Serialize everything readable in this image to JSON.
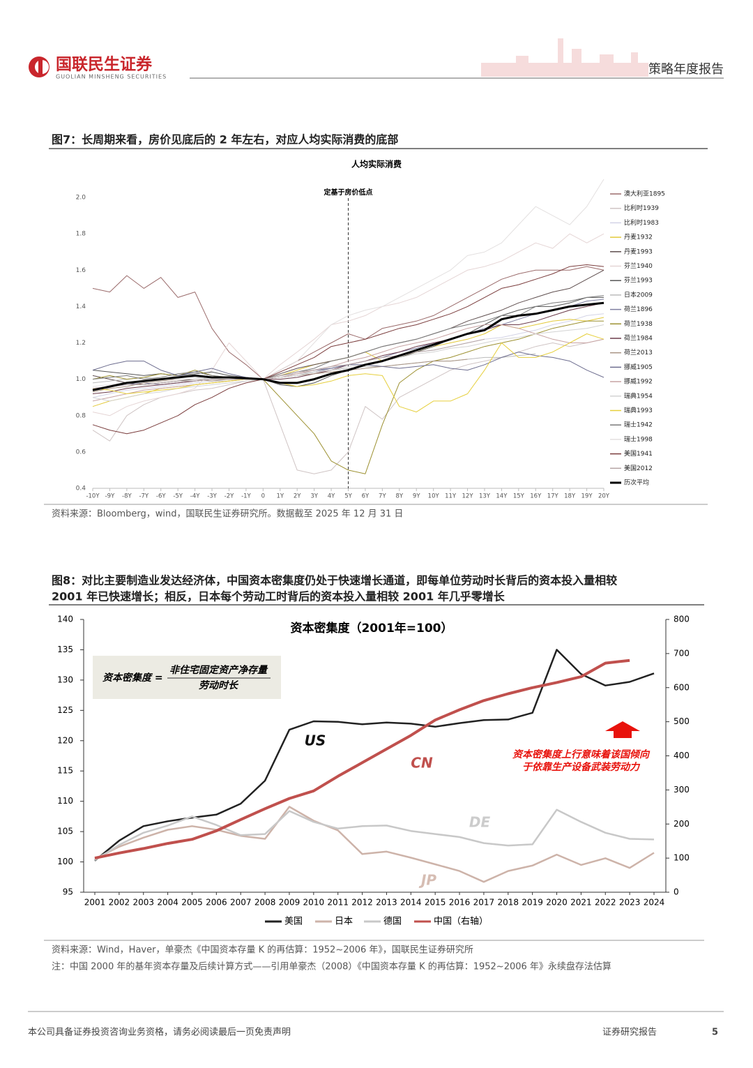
{
  "header": {
    "logo_cn": "国联民生证券",
    "logo_en": "GUOLIAN MINSHENG SECURITIES",
    "report_type": "策略年度报告"
  },
  "figures": [
    {
      "caption": "图7：长周期来看，房价见底后的 2 年左右，对应人均实际消费的底部",
      "source": "资料来源：Bloomberg，wind，国联民生证券研究所。数据截至 2025 年 12 月 31 日"
    },
    {
      "caption_lines": [
        "图8：对比主要制造业发达经济体，中国资本密集度仍处于快速增长通道，即每单位劳动时长背后的资本投入量相较",
        "2001 年已快速增长；相反，日本每个劳动工时背后的资本投入量相较 2001 年几乎零增长"
      ],
      "source": "资料来源：Wind，Haver，单豪杰《中国资本存量 K 的再估算：1952~2006 年》，国联民生证券研究所",
      "note": "注：中国 2000 年的基年资本存量及后续计算方式——引用单豪杰（2008）《中国资本存量 K 的再估算：1952~2006 年》永续盘存法估算"
    }
  ],
  "chart_data": [
    {
      "type": "line",
      "title": "人均实际消费",
      "annotations": [
        "定基于房价低点"
      ],
      "legend": "right",
      "categories": [
        "-10Y",
        "-9Y",
        "-8Y",
        "-7Y",
        "-6Y",
        "-5Y",
        "-4Y",
        "-3Y",
        "-2Y",
        "-1Y",
        "0",
        "1Y",
        "2Y",
        "3Y",
        "4Y",
        "5Y",
        "6Y",
        "7Y",
        "8Y",
        "9Y",
        "10Y",
        "11Y",
        "12Y",
        "13Y",
        "14Y",
        "15Y",
        "16Y",
        "17Y",
        "18Y",
        "19Y",
        "20Y"
      ],
      "ylim": [
        0.4,
        2.1
      ],
      "yticks": [
        0.4,
        0.6,
        0.8,
        {
          "value": 1,
          "label": "1.0"
        },
        1.2,
        1.4,
        1.6,
        1.8,
        {
          "value": 2,
          "label": "2.0"
        }
      ],
      "series": [
        {
          "name": "澳大利亚1895",
          "color": "#9a6a6a",
          "values": [
            1.5,
            1.48,
            1.57,
            1.5,
            1.56,
            1.45,
            1.48,
            1.28,
            1.15,
            1.08,
            1.0,
            1.05,
            1.1,
            1.15,
            1.2,
            1.25,
            1.22,
            1.28,
            1.3,
            1.32,
            1.35,
            1.4,
            1.45,
            1.5,
            1.55,
            1.58,
            1.6,
            1.6,
            1.6,
            1.62,
            1.6
          ]
        },
        {
          "name": "比利时1939",
          "color": "#cfc4c4",
          "values": [
            0.72,
            0.66,
            0.8,
            0.86,
            0.9,
            0.92,
            0.94,
            0.95,
            0.97,
            0.99,
            1.0,
            0.75,
            0.5,
            0.48,
            0.5,
            0.6,
            0.85,
            0.78,
            0.9,
            0.95,
            1.0,
            1.05,
            1.08,
            1.1,
            1.12,
            1.15,
            1.18,
            1.2,
            1.18,
            1.2,
            1.22
          ]
        },
        {
          "name": "比利时1983",
          "color": "#d3d3e6",
          "values": [
            0.9,
            0.92,
            0.94,
            0.95,
            0.96,
            0.97,
            0.98,
            0.99,
            0.99,
            1.0,
            1.0,
            1.02,
            1.04,
            1.05,
            1.07,
            1.08,
            1.1,
            1.12,
            1.13,
            1.15,
            1.16,
            1.18,
            1.2,
            1.22,
            1.23,
            1.25,
            1.27,
            1.3,
            1.32,
            1.35,
            1.36
          ]
        },
        {
          "name": "丹麦1932",
          "color": "#e3c93a",
          "values": [
            0.85,
            0.88,
            0.9,
            0.92,
            0.95,
            0.96,
            0.97,
            0.98,
            0.99,
            1.0,
            1.0,
            1.02,
            1.05,
            1.08,
            1.1,
            1.12,
            1.15,
            1.1,
            1.12,
            1.15,
            1.18,
            1.2,
            1.22,
            1.25,
            1.3,
            1.28,
            1.3,
            1.32,
            1.33,
            1.32,
            1.34
          ]
        },
        {
          "name": "丹麦1993",
          "color": "#5e4e4e",
          "values": [
            1.02,
            1.0,
            0.98,
            0.97,
            0.98,
            0.99,
            1.0,
            1.0,
            1.0,
            1.0,
            1.0,
            1.03,
            1.06,
            1.08,
            1.1,
            1.12,
            1.15,
            1.18,
            1.2,
            1.22,
            1.25,
            1.28,
            1.32,
            1.35,
            1.38,
            1.42,
            1.45,
            1.48,
            1.5,
            1.55,
            1.6
          ]
        },
        {
          "name": "芬兰1940",
          "color": "#e5d5d5",
          "values": [
            0.82,
            0.8,
            0.85,
            0.88,
            0.9,
            0.92,
            0.95,
            1.05,
            1.2,
            1.1,
            1.0,
            1.08,
            1.15,
            1.22,
            1.3,
            1.32,
            1.35,
            1.4,
            1.42,
            1.45,
            1.5,
            1.55,
            1.6,
            1.62,
            1.65,
            1.7,
            1.75,
            1.72,
            1.8,
            1.75,
            1.8
          ]
        },
        {
          "name": "芬兰1993",
          "color": "#555555",
          "values": [
            1.05,
            1.04,
            1.03,
            1.02,
            1.03,
            1.02,
            1.03,
            1.04,
            1.02,
            1.01,
            1.0,
            0.97,
            0.96,
            0.98,
            1.02,
            1.05,
            1.08,
            1.1,
            1.12,
            1.15,
            1.18,
            1.22,
            1.25,
            1.3,
            1.35,
            1.38,
            1.4,
            1.4,
            1.42,
            1.45,
            1.45
          ]
        },
        {
          "name": "日本2009",
          "color": "#bbbbbb",
          "values": [
            0.98,
            0.99,
            1.0,
            1.01,
            1.0,
            1.02,
            1.01,
            1.0,
            1.0,
            1.0,
            1.0,
            1.02,
            1.03,
            1.04,
            1.05,
            1.06,
            1.07,
            1.07,
            1.08,
            1.09,
            1.1,
            1.1,
            1.11,
            1.12,
            1.12,
            1.13,
            1.14,
            null,
            null,
            null,
            null
          ]
        },
        {
          "name": "荷兰1896",
          "color": "#7f7fa0",
          "values": [
            0.95,
            0.96,
            0.97,
            0.98,
            0.97,
            0.98,
            0.99,
            1.0,
            1.0,
            1.0,
            1.0,
            1.01,
            1.02,
            1.04,
            1.06,
            1.08,
            1.1,
            1.12,
            1.15,
            1.17,
            1.2,
            1.22,
            1.25,
            1.28,
            1.3,
            1.33,
            1.36,
            1.38,
            1.4,
            1.43,
            1.44
          ]
        },
        {
          "name": "荷兰1938",
          "color": "#9c9030",
          "values": [
            1.0,
            1.02,
            1.0,
            1.01,
            1.03,
            1.02,
            1.05,
            1.02,
            1.01,
            1.0,
            1.0,
            0.9,
            0.8,
            0.7,
            0.55,
            0.5,
            0.48,
            0.75,
            0.98,
            1.05,
            1.1,
            1.12,
            1.15,
            1.18,
            1.2,
            1.22,
            1.25,
            1.28,
            1.3,
            1.32,
            1.32
          ]
        },
        {
          "name": "荷兰1984",
          "color": "#6b3a4a",
          "values": [
            0.92,
            0.93,
            0.95,
            0.96,
            0.97,
            0.98,
            0.99,
            1.0,
            1.0,
            1.0,
            1.0,
            1.0,
            1.01,
            1.03,
            1.05,
            1.08,
            1.1,
            1.13,
            1.15,
            1.18,
            1.2,
            1.22,
            1.25,
            1.27,
            1.3,
            1.3,
            1.32,
            1.35,
            1.38,
            1.4,
            1.42
          ]
        },
        {
          "name": "荷兰2013",
          "color": "#a99585",
          "values": [
            0.93,
            0.95,
            0.96,
            0.98,
            0.99,
            1.0,
            1.0,
            0.99,
            1.0,
            1.0,
            1.0,
            1.01,
            1.02,
            1.03,
            1.04,
            1.05,
            1.06,
            1.07,
            1.08,
            1.09,
            1.1,
            1.1,
            1.11,
            null,
            null,
            null,
            null,
            null,
            null,
            null,
            null
          ]
        },
        {
          "name": "挪威1905",
          "color": "#6d6d8f",
          "values": [
            1.05,
            1.08,
            1.1,
            1.1,
            1.05,
            1.02,
            1.04,
            1.06,
            1.03,
            1.01,
            1.0,
            1.02,
            1.04,
            1.05,
            1.06,
            1.08,
            1.08,
            1.07,
            1.06,
            1.07,
            1.08,
            1.06,
            1.05,
            1.08,
            1.12,
            1.15,
            1.13,
            1.12,
            1.1,
            1.05,
            1.01
          ]
        },
        {
          "name": "挪威1992",
          "color": "#c7a3a3",
          "values": [
            0.88,
            0.9,
            0.92,
            0.94,
            0.95,
            0.96,
            0.97,
            0.98,
            0.99,
            1.0,
            1.0,
            1.01,
            1.03,
            1.05,
            1.07,
            1.1,
            1.12,
            1.15,
            1.18,
            1.2,
            1.22,
            1.25,
            1.28,
            1.3,
            1.3,
            1.28,
            1.25,
            1.22,
            1.2,
            1.2,
            1.22
          ]
        },
        {
          "name": "瑞典1954",
          "color": "#d3d3d3",
          "values": [
            0.9,
            0.88,
            0.9,
            0.92,
            0.93,
            0.95,
            0.96,
            0.97,
            0.98,
            0.99,
            1.0,
            1.01,
            1.02,
            1.04,
            1.05,
            1.07,
            1.08,
            1.1,
            1.12,
            1.14,
            1.15,
            1.17,
            1.18,
            1.2,
            1.22,
            1.23,
            1.25,
            1.26,
            1.27,
            1.28,
            1.3
          ]
        },
        {
          "name": "瑞典1993",
          "color": "#e6cf3c",
          "values": [
            0.95,
            0.94,
            0.92,
            0.93,
            0.94,
            0.95,
            0.97,
            0.98,
            0.99,
            1.0,
            1.0,
            0.98,
            0.96,
            0.97,
            0.99,
            1.02,
            1.03,
            1.02,
            0.85,
            0.82,
            0.88,
            0.88,
            0.92,
            1.05,
            1.2,
            1.12,
            1.12,
            1.15,
            1.2,
            1.25,
            1.22
          ]
        },
        {
          "name": "瑞士1942",
          "color": "#7a7a7a",
          "values": [
            1.0,
            1.01,
            1.02,
            1.0,
            1.01,
            1.03,
            1.04,
            1.02,
            1.01,
            1.0,
            1.0,
            1.02,
            1.04,
            1.06,
            1.1,
            1.12,
            1.15,
            1.18,
            1.2,
            1.22,
            1.25,
            1.28,
            1.3,
            1.32,
            1.35,
            1.35,
            1.4,
            1.42,
            1.43,
            1.45,
            1.46
          ]
        },
        {
          "name": "瑞士1998",
          "color": "#e3e0e0",
          "values": [
            0.96,
            0.97,
            0.98,
            0.99,
            1.0,
            1.0,
            1.0,
            1.0,
            1.0,
            1.0,
            1.0,
            1.05,
            1.1,
            1.2,
            1.3,
            1.35,
            1.38,
            1.4,
            1.45,
            1.5,
            1.55,
            1.6,
            1.68,
            1.7,
            1.75,
            1.85,
            1.95,
            1.9,
            1.85,
            1.95,
            2.1
          ]
        },
        {
          "name": "美国1941",
          "color": "#7a3c3c",
          "values": [
            0.75,
            0.72,
            0.7,
            0.72,
            0.76,
            0.8,
            0.86,
            0.9,
            0.95,
            0.98,
            1.0,
            1.04,
            1.08,
            1.12,
            1.18,
            1.2,
            1.22,
            1.25,
            1.28,
            1.3,
            1.33,
            1.36,
            1.4,
            1.45,
            1.5,
            1.52,
            1.55,
            1.58,
            1.62,
            1.63,
            1.62
          ]
        },
        {
          "name": "美国2012",
          "color": "#b5a5a5",
          "values": [
            0.95,
            0.96,
            0.97,
            0.97,
            0.98,
            0.99,
            0.99,
            1.0,
            1.0,
            1.0,
            1.0,
            1.02,
            1.04,
            1.05,
            1.07,
            1.08,
            1.1,
            1.12,
            1.13,
            1.15,
            1.16,
            1.18,
            1.2,
            1.22,
            null,
            null,
            null,
            null,
            null,
            null,
            null
          ]
        },
        {
          "name": "历次平均",
          "color": "#000000",
          "linewidth": 3,
          "values": [
            0.94,
            0.96,
            0.98,
            0.99,
            1.0,
            1.01,
            1.02,
            1.01,
            1.01,
            1.005,
            1.0,
            0.98,
            0.98,
            1.0,
            1.03,
            1.05,
            1.08,
            1.1,
            1.13,
            1.16,
            1.19,
            1.22,
            1.25,
            1.27,
            1.33,
            1.35,
            1.36,
            1.38,
            1.4,
            1.41,
            1.42
          ]
        }
      ]
    },
    {
      "type": "line",
      "title": "资本密集度（2001年=100）",
      "legend": "bottom",
      "annotations": [
        "US",
        "CN",
        "DE",
        "JP"
      ],
      "formula": {
        "lhs": "资本密集度 =",
        "numerator": "非住宅固定资产净存量",
        "denominator": "劳动时长"
      },
      "note_lines": [
        "资本密集度上行意味着该国倾向",
        "于依靠生产设备武装劳动力"
      ],
      "categories": [
        "2001",
        "2002",
        "2003",
        "2004",
        "2005",
        "2006",
        "2007",
        "2008",
        "2009",
        "2010",
        "2011",
        "2012",
        "2013",
        "2014",
        "2015",
        "2016",
        "2017",
        "2018",
        "2019",
        "2020",
        "2021",
        "2022",
        "2023",
        "2024"
      ],
      "ylim": [
        95,
        140
      ],
      "yticks": [
        95,
        100,
        105,
        110,
        115,
        120,
        125,
        130,
        135,
        140
      ],
      "y2lim": [
        0,
        800
      ],
      "y2ticks": [
        0,
        100,
        200,
        300,
        400,
        500,
        600,
        700,
        800
      ],
      "series": [
        {
          "name": "美国",
          "color": "#222222",
          "linewidth": 2.5,
          "values": [
            100.2,
            103.5,
            105.9,
            106.7,
            107.3,
            107.8,
            109.6,
            113.4,
            121.8,
            123.2,
            123.1,
            122.7,
            123.0,
            122.8,
            122.3,
            122.9,
            123.4,
            123.5,
            124.6,
            135.0,
            131.0,
            129.1,
            129.7,
            131.1
          ]
        },
        {
          "name": "日本",
          "color": "#cdb3a9",
          "linewidth": 2.5,
          "values": [
            100.5,
            102.5,
            104.0,
            105.3,
            105.9,
            105.3,
            104.3,
            103.8,
            109.1,
            106.8,
            105.2,
            101.3,
            101.7,
            100.7,
            99.6,
            98.5,
            96.7,
            98.5,
            99.4,
            101.2,
            99.5,
            100.6,
            99.0,
            101.5
          ]
        },
        {
          "name": "德国",
          "color": "#c8c8c8",
          "linewidth": 2.5,
          "values": [
            100.3,
            102.8,
            104.8,
            106.0,
            107.5,
            106.1,
            104.4,
            104.6,
            108.4,
            106.6,
            105.5,
            105.9,
            106.0,
            105.1,
            104.6,
            104.1,
            103.1,
            102.7,
            102.9,
            108.6,
            106.6,
            104.8,
            103.8,
            103.7
          ]
        },
        {
          "name": "中国（右轴）",
          "color": "#c0504d",
          "linewidth": 4,
          "axis": "y2",
          "values": [
            100,
            115,
            128,
            143,
            155,
            180,
            213,
            245,
            275,
            297,
            340,
            380,
            420,
            460,
            505,
            535,
            562,
            582,
            600,
            615,
            632,
            672,
            680,
            null
          ]
        }
      ]
    }
  ],
  "footer": {
    "disclaimer": "本公司具备证券投资咨询业务资格，请务必阅读最后一页免责声明",
    "label": "证券研究报告",
    "page": "5"
  }
}
